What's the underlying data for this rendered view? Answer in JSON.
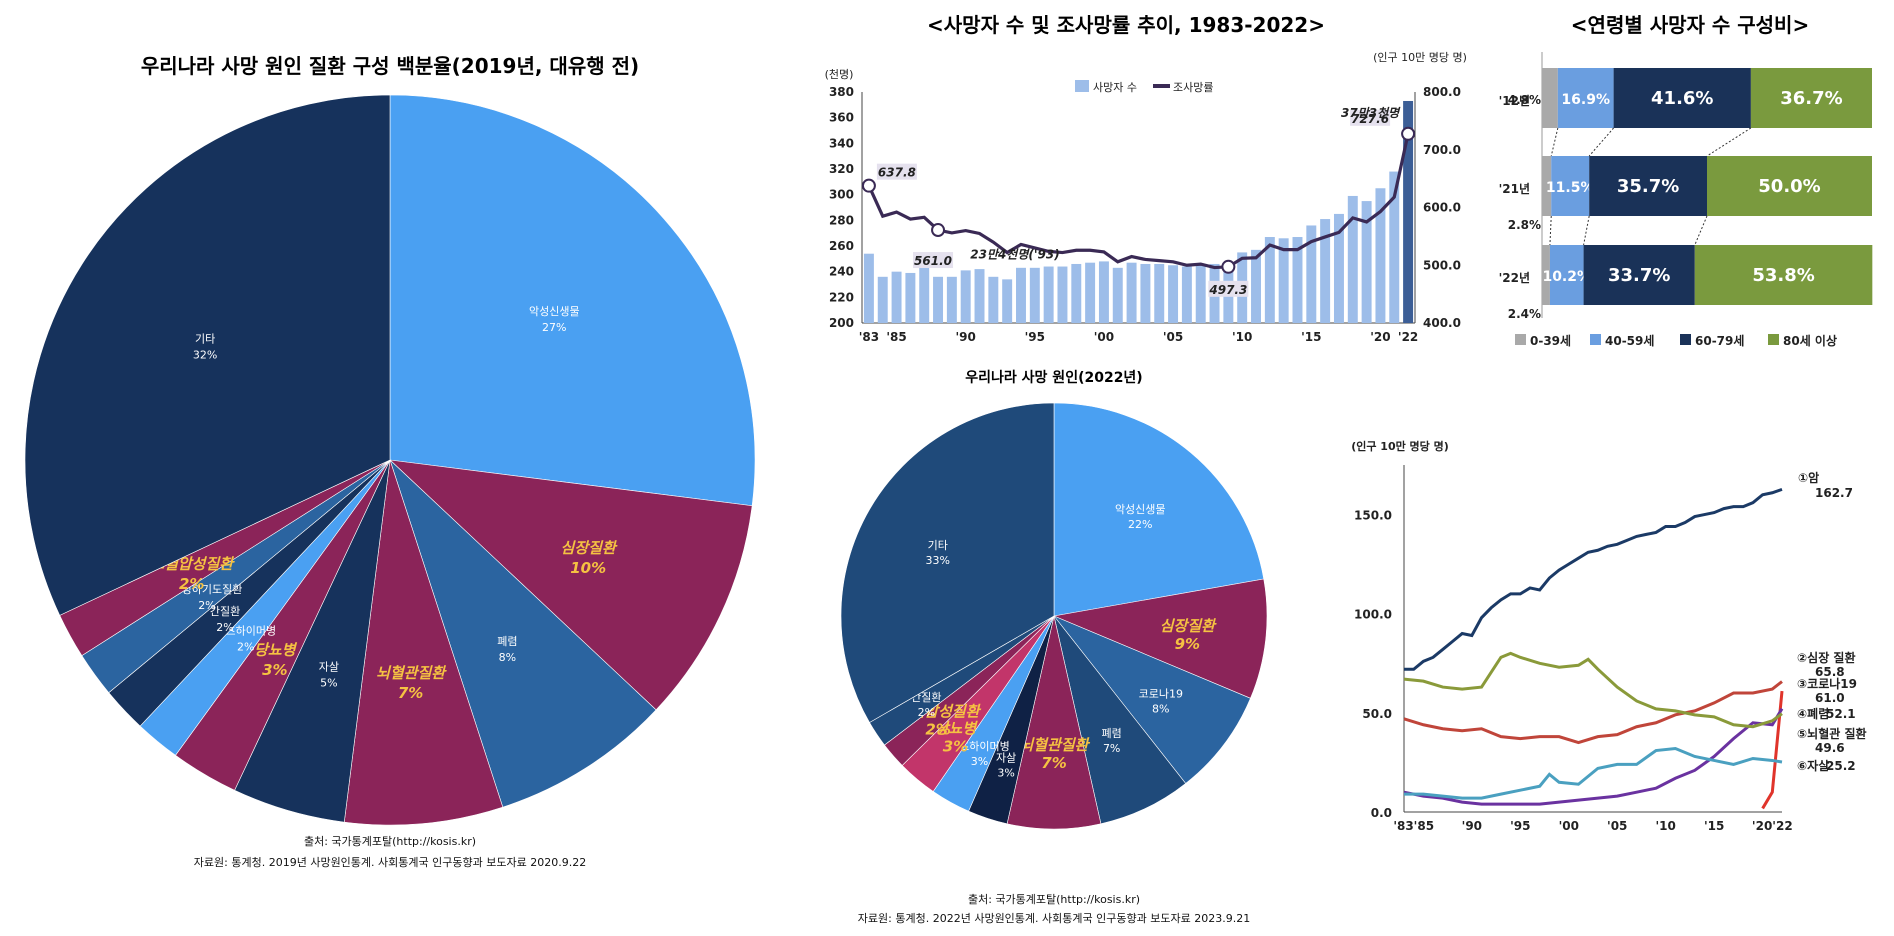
{
  "chart_data": [
    {
      "type": "pie",
      "title": "우리나라 사망 원인 질환 구성 백분율(2019년, 대유행 전)",
      "slices": [
        {
          "label": "악성신생물",
          "pct": "27%",
          "value": 27,
          "color": "#4aa0f2",
          "label_color": "#ffffff"
        },
        {
          "label": "심장질환",
          "pct": "10%",
          "value": 10,
          "color": "#8b2459",
          "label_color": "#f5c242"
        },
        {
          "label": "폐렴",
          "pct": "8%",
          "value": 8,
          "color": "#2b64a0",
          "label_color": "#ffffff"
        },
        {
          "label": "뇌혈관질환",
          "pct": "7%",
          "value": 7,
          "color": "#8b2459",
          "label_color": "#f5c242"
        },
        {
          "label": "자살",
          "pct": "5%",
          "value": 5,
          "color": "#16325c",
          "label_color": "#ffffff"
        },
        {
          "label": "당뇨병",
          "pct": "3%",
          "value": 3,
          "color": "#8b2459",
          "label_color": "#f5c242"
        },
        {
          "label": "알츠하이머병",
          "pct": "2%",
          "value": 2,
          "color": "#4aa0f2",
          "label_color": "#ffffff"
        },
        {
          "label": "간질환",
          "pct": "2%",
          "value": 2,
          "color": "#16325c",
          "label_color": "#ffffff"
        },
        {
          "label": "만성하기도질환",
          "pct": "2%",
          "value": 2,
          "color": "#2b64a0",
          "label_color": "#ffffff"
        },
        {
          "label": "고혈압성질환",
          "pct": "2%",
          "value": 2,
          "color": "#8b2459",
          "label_color": "#f5c242"
        },
        {
          "label": "기타",
          "pct": "32%",
          "value": 32,
          "color": "#16325c",
          "label_color": "#ffffff"
        }
      ],
      "source_line1": "출처: 국가통계포탈(http://kosis.kr)",
      "source_line2": "자료원: 통계청. 2019년 사망원인통계. 사회통계국 인구동향과 보도자료 2020.9.22"
    },
    {
      "type": "bar",
      "title": "<사망자 수 및 조사망률 추이, 1983-2022>",
      "ylabel_left": "(천명)",
      "ylabel_right": "(인구 10만 명당 명)",
      "legend": [
        "사망자 수",
        "조사망률"
      ],
      "x": [
        1983,
        1984,
        1985,
        1986,
        1987,
        1988,
        1989,
        1990,
        1991,
        1992,
        1993,
        1994,
        1995,
        1996,
        1997,
        1998,
        1999,
        2000,
        2001,
        2002,
        2003,
        2004,
        2005,
        2006,
        2007,
        2008,
        2009,
        2010,
        2011,
        2012,
        2013,
        2014,
        2015,
        2016,
        2017,
        2018,
        2019,
        2020,
        2021,
        2022
      ],
      "x_tick_labels": [
        "'83",
        "'85",
        "'90",
        "'95",
        "'00",
        "'05",
        "'10",
        "'15",
        "'20",
        "'22"
      ],
      "x_tick_years": [
        1983,
        1985,
        1990,
        1995,
        2000,
        2005,
        2010,
        2015,
        2020,
        2022
      ],
      "deaths_thousand": [
        254,
        236,
        240,
        239,
        243,
        236,
        236,
        241,
        242,
        236,
        234,
        243,
        243,
        244,
        244,
        246,
        247,
        248,
        243,
        247,
        246,
        246,
        245,
        244,
        245,
        246,
        247,
        255,
        257,
        267,
        266,
        267,
        276,
        281,
        285,
        299,
        295,
        305,
        318,
        373
      ],
      "crude_rate": [
        637.8,
        585,
        592,
        580,
        583,
        561.0,
        556,
        560,
        555,
        540,
        522,
        536,
        530,
        524,
        522,
        526,
        526,
        523,
        506,
        515,
        510,
        508,
        506,
        500,
        502,
        496,
        497.3,
        512,
        513,
        535,
        527,
        527,
        541,
        549,
        557,
        582,
        575,
        593,
        618,
        727.6
      ],
      "y_left_ticks": [
        "380",
        "360",
        "340",
        "320",
        "300",
        "280",
        "260",
        "240",
        "220",
        "200"
      ],
      "y_right_ticks": [
        "800.0",
        "700.0",
        "600.0",
        "500.0",
        "400.0"
      ],
      "ylim_left": [
        200,
        380
      ],
      "ylim_right": [
        400,
        800
      ],
      "annotations": {
        "rate_1983": "637.8",
        "rate_1988": "561.0",
        "rate_2009": "497.3",
        "rate_2022": "727.6",
        "deaths_1993": "23만4천명('93)",
        "deaths_2022": "37만3천명"
      }
    },
    {
      "type": "bar",
      "title": "<연령별 사망자 수 구성비>",
      "categories": [
        "'12년",
        "'21년",
        "'22년"
      ],
      "series": [
        {
          "name": "0-39세",
          "color": "#a9a9a9",
          "values": [
            4.8,
            2.8,
            2.4
          ],
          "labels": [
            "4.8%",
            "2.8%",
            "2.4%"
          ]
        },
        {
          "name": "40-59세",
          "color": "#6a9ee0",
          "values": [
            16.9,
            11.5,
            10.2
          ],
          "labels": [
            "16.9%",
            "11.5%",
            "10.2%"
          ]
        },
        {
          "name": "60-79세",
          "color": "#1a3258",
          "values": [
            41.6,
            35.7,
            33.7
          ],
          "labels": [
            "41.6%",
            "35.7%",
            "33.7%"
          ]
        },
        {
          "name": "80세 이상",
          "color": "#7a9a3e",
          "values": [
            36.7,
            50.0,
            53.8
          ],
          "labels": [
            "36.7%",
            "50.0%",
            "53.8%"
          ]
        }
      ]
    },
    {
      "type": "pie",
      "title": "우리나라 사망 원인(2022년)",
      "slices": [
        {
          "label": "악성신생물",
          "pct": "22%",
          "value": 22,
          "color": "#4aa0f2",
          "label_color": "#ffffff"
        },
        {
          "label": "심장질환",
          "pct": "9%",
          "value": 9,
          "color": "#8b2459",
          "label_color": "#f5c242"
        },
        {
          "label": "코로나19",
          "pct": "8%",
          "value": 8,
          "color": "#2b64a0",
          "label_color": "#ffffff"
        },
        {
          "label": "폐렴",
          "pct": "7%",
          "value": 7,
          "color": "#1f4a7a",
          "label_color": "#ffffff"
        },
        {
          "label": "뇌혈관질환",
          "pct": "7%",
          "value": 7,
          "color": "#8b2459",
          "label_color": "#f5c242"
        },
        {
          "label": "자살",
          "pct": "3%",
          "value": 3,
          "color": "#0f2145",
          "label_color": "#ffffff"
        },
        {
          "label": "알츠하이머병",
          "pct": "3%",
          "value": 3,
          "color": "#4aa0f2",
          "label_color": "#ffffff"
        },
        {
          "label": "당뇨병",
          "pct": "3%",
          "value": 3,
          "color": "#c2356a",
          "label_color": "#f5c242"
        },
        {
          "label": "고혈압성질환",
          "pct": "2%",
          "value": 2,
          "color": "#8b2459",
          "label_color": "#f5c242"
        },
        {
          "label": "간질환",
          "pct": "2%",
          "value": 2,
          "color": "#1f4a7a",
          "label_color": "#ffffff"
        },
        {
          "label": "기타",
          "pct": "33%",
          "value": 33,
          "color": "#1f4a7a",
          "label_color": "#ffffff"
        }
      ],
      "source_line1": "출처: 국가통계포탈(http://kosis.kr)",
      "source_line2": "자료원: 통계청. 2022년 사망원인통계. 사회통계국 인구동향과 보도자료 2023.9.21"
    },
    {
      "type": "line",
      "ylabel": "(인구 10만 명당 명)",
      "x_tick_labels": [
        "'83'85",
        "'90",
        "'95",
        "'00",
        "'05",
        "'10",
        "'15",
        "'20'22"
      ],
      "x_tick_years": [
        1984,
        1990,
        1995,
        2000,
        2005,
        2010,
        2015,
        2021
      ],
      "y_ticks": [
        "150.0",
        "100.0",
        "50.0",
        "0.0"
      ],
      "ylim": [
        0,
        175
      ],
      "xlim": [
        1983,
        2022
      ],
      "series": [
        {
          "name": "①암",
          "end_label": "162.7",
          "color": "#1b3a66",
          "label_color": "#1b3a66",
          "x": [
            1983,
            1984,
            1985,
            1986,
            1987,
            1988,
            1989,
            1990,
            1991,
            1992,
            1993,
            1994,
            1995,
            1996,
            1997,
            1998,
            1999,
            2000,
            2001,
            2002,
            2003,
            2004,
            2005,
            2006,
            2007,
            2008,
            2009,
            2010,
            2011,
            2012,
            2013,
            2014,
            2015,
            2016,
            2017,
            2018,
            2019,
            2020,
            2021,
            2022
          ],
          "y": [
            72,
            72,
            76,
            78,
            82,
            86,
            90,
            89,
            98,
            103,
            107,
            110,
            110,
            113,
            112,
            118,
            122,
            125,
            128,
            131,
            132,
            134,
            135,
            137,
            139,
            140,
            141,
            144,
            144,
            146,
            149,
            150,
            151,
            153,
            154,
            154,
            156,
            160,
            161,
            162.7
          ]
        },
        {
          "name": "②심장 질환",
          "end_label": "65.8",
          "color": "#c0453a",
          "label_color": "#c0453a",
          "x": [
            1983,
            1985,
            1987,
            1989,
            1991,
            1993,
            1995,
            1997,
            1999,
            2001,
            2003,
            2005,
            2007,
            2009,
            2011,
            2013,
            2015,
            2017,
            2019,
            2021,
            2022
          ],
          "y": [
            47,
            44,
            42,
            41,
            42,
            38,
            37,
            38,
            38,
            35,
            38,
            39,
            43,
            45,
            49,
            51,
            55,
            60,
            60,
            62,
            65.8
          ]
        },
        {
          "name": "③코로나19",
          "end_label": "61.0",
          "color": "#e0342b",
          "label_color": "#e0342b",
          "x": [
            2020,
            2021,
            2022
          ],
          "y": [
            1.8,
            10,
            61.0
          ]
        },
        {
          "name": "④폐렴",
          "end_label": "52.1",
          "color": "#6a32a0",
          "label_color": "#6a32a0",
          "x": [
            1983,
            1985,
            1987,
            1989,
            1991,
            1993,
            1995,
            1997,
            1999,
            2001,
            2003,
            2005,
            2007,
            2009,
            2011,
            2013,
            2015,
            2017,
            2019,
            2021,
            2022
          ],
          "y": [
            10,
            8,
            7,
            5,
            4,
            4,
            4,
            4,
            5,
            6,
            7,
            8,
            10,
            12,
            17,
            21,
            28,
            37,
            45,
            44,
            52.1
          ]
        },
        {
          "name": "⑤뇌혈관 질환",
          "end_label": "49.6",
          "color": "#8a9a3a",
          "label_color": "#7a8a30",
          "x": [
            1983,
            1985,
            1987,
            1989,
            1991,
            1993,
            1994,
            1995,
            1997,
            1999,
            2001,
            2002,
            2003,
            2005,
            2007,
            2009,
            2011,
            2013,
            2015,
            2017,
            2019,
            2021,
            2022
          ],
          "y": [
            67,
            66,
            63,
            62,
            63,
            78,
            80,
            78,
            75,
            73,
            74,
            77,
            72,
            63,
            56,
            52,
            51,
            49,
            48,
            44,
            43,
            46,
            49.6
          ]
        },
        {
          "name": "⑥자살",
          "end_label": "25.2",
          "color": "#4aa0c0",
          "label_color": "#2a6a90",
          "x": [
            1983,
            1985,
            1987,
            1989,
            1991,
            1993,
            1995,
            1997,
            1998,
            1999,
            2001,
            2003,
            2005,
            2007,
            2009,
            2011,
            2013,
            2015,
            2017,
            2019,
            2021,
            2022
          ],
          "y": [
            9,
            9,
            8,
            7,
            7,
            9,
            11,
            13,
            19,
            15,
            14,
            22,
            24,
            24,
            31,
            32,
            28,
            26,
            24,
            27,
            26,
            25.2
          ]
        }
      ]
    }
  ]
}
